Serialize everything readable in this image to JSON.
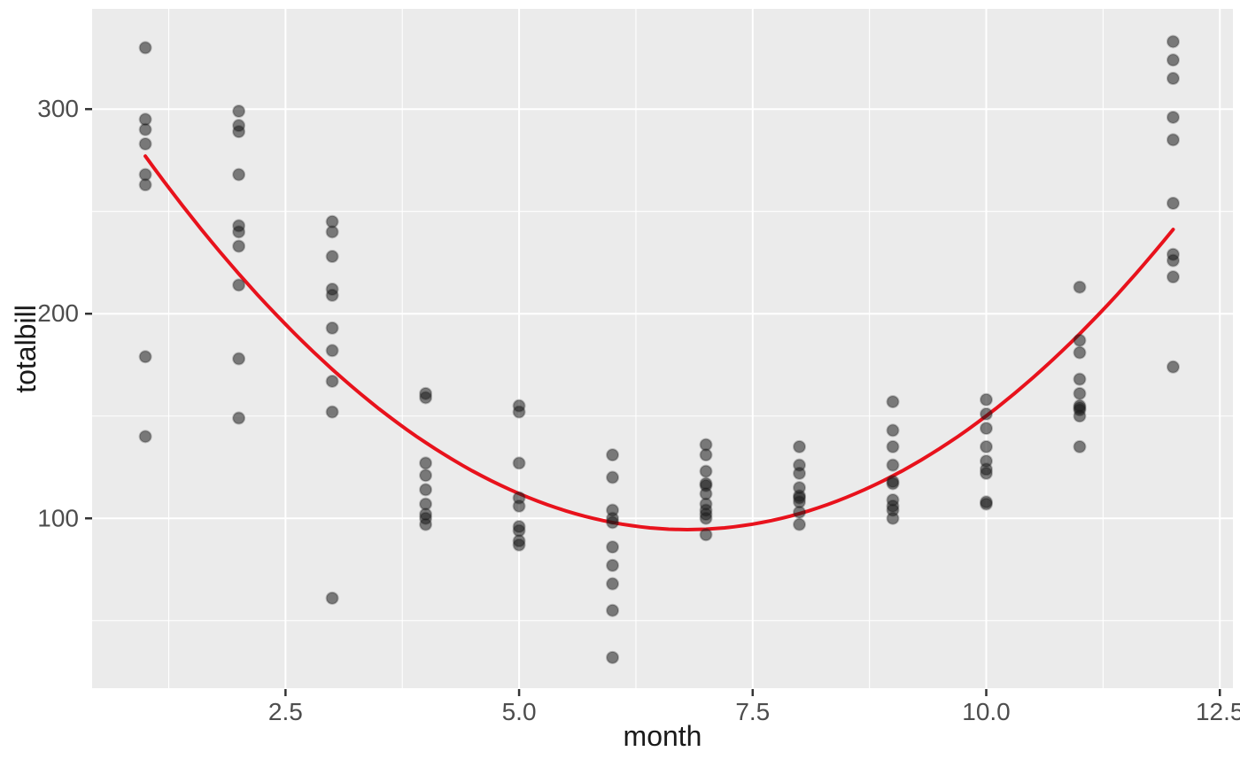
{
  "chart_data": {
    "type": "scatter",
    "title": "",
    "xlabel": "month",
    "ylabel": "totalbill",
    "x_axis": {
      "ticks": [
        2.5,
        5.0,
        7.5,
        10.0,
        12.5
      ],
      "tick_labels": [
        "2.5",
        "5.0",
        "7.5",
        "10.0",
        "12.5"
      ],
      "minor_ticks": [
        1.25,
        3.75,
        6.25,
        8.75,
        11.25
      ],
      "range": [
        0.43,
        12.64
      ]
    },
    "y_axis": {
      "ticks": [
        100,
        200,
        300
      ],
      "tick_labels": [
        "100",
        "200",
        "300"
      ],
      "minor_ticks": [
        50,
        150,
        250
      ],
      "range": [
        17,
        349
      ]
    },
    "grid": true,
    "legend": false,
    "points": [
      {
        "month": 1,
        "totalbill": [
          330,
          295,
          290,
          283,
          268,
          263,
          179,
          140
        ]
      },
      {
        "month": 2,
        "totalbill": [
          299,
          292,
          289,
          268,
          243,
          240,
          233,
          214,
          178,
          149
        ]
      },
      {
        "month": 3,
        "totalbill": [
          245,
          240,
          228,
          212,
          209,
          193,
          182,
          167,
          152,
          61
        ]
      },
      {
        "month": 4,
        "totalbill": [
          161,
          159,
          127,
          121,
          114,
          107,
          102,
          100,
          97
        ]
      },
      {
        "month": 5,
        "totalbill": [
          155,
          152,
          127,
          110,
          106,
          96,
          94,
          89,
          87
        ]
      },
      {
        "month": 6,
        "totalbill": [
          131,
          120,
          104,
          100,
          98,
          86,
          77,
          68,
          55,
          32
        ]
      },
      {
        "month": 7,
        "totalbill": [
          136,
          131,
          123,
          117,
          116,
          112,
          107,
          104,
          102,
          100,
          92
        ]
      },
      {
        "month": 8,
        "totalbill": [
          135,
          126,
          122,
          115,
          111,
          110,
          108,
          103,
          97
        ]
      },
      {
        "month": 9,
        "totalbill": [
          157,
          143,
          135,
          126,
          118,
          117,
          109,
          106,
          104,
          100
        ]
      },
      {
        "month": 10,
        "totalbill": [
          158,
          151,
          144,
          135,
          128,
          124,
          122,
          108,
          107
        ]
      },
      {
        "month": 11,
        "totalbill": [
          213,
          187,
          181,
          168,
          161,
          155,
          154,
          153,
          150,
          135
        ]
      },
      {
        "month": 12,
        "totalbill": [
          333,
          324,
          315,
          296,
          285,
          254,
          229,
          226,
          218,
          174
        ]
      }
    ],
    "smooth_curve": {
      "type": "quadratic",
      "equation": "y = a*(x - h)^2 + k",
      "a": 5.425,
      "h": 6.8,
      "k": 94.5,
      "x_domain": [
        1,
        12
      ],
      "endpoint_values": [
        277,
        241
      ]
    }
  },
  "style": {
    "panel_background": "#ebebeb",
    "grid_color": "#ffffff",
    "point_color": "#1a1a1a",
    "point_opacity": 0.55,
    "curve_color": "#e8121c",
    "tick_mark_color": "#333333",
    "tick_label_color": "#4d4d4d",
    "axis_title_color": "#1a1a1a"
  }
}
